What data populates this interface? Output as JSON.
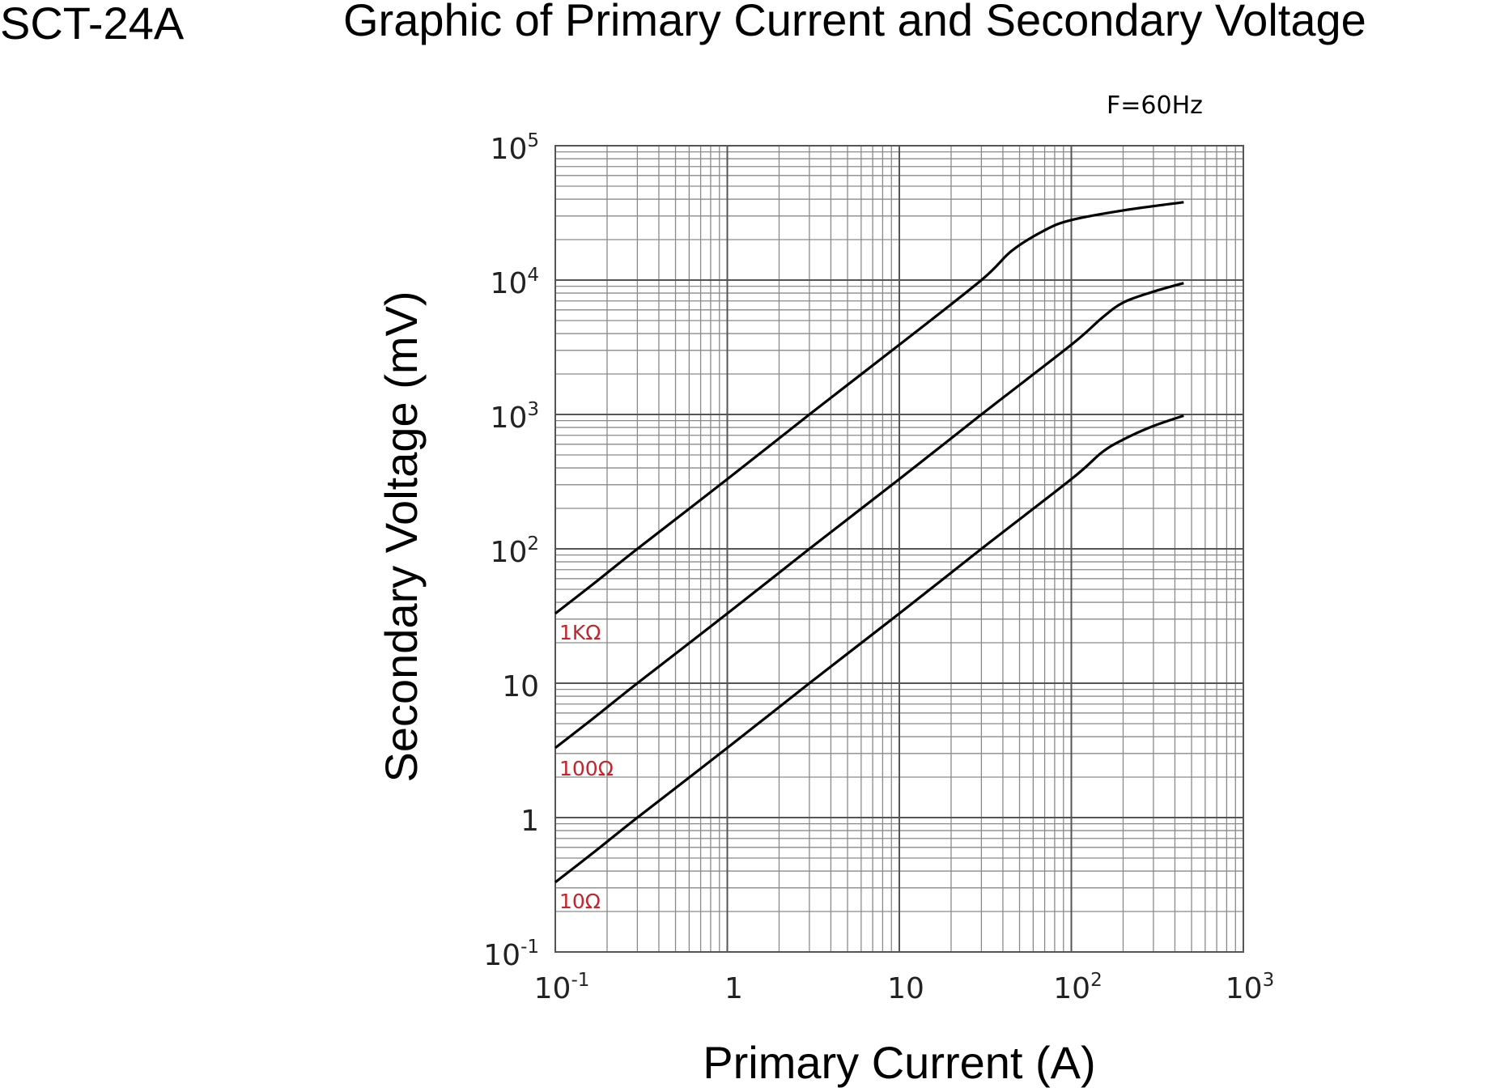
{
  "model": "SCT-24A",
  "chart_data": {
    "type": "line",
    "title": "Graphic of Primary Current and Secondary Voltage",
    "annotation": "F=60Hz",
    "xlabel": "Primary Current (A)",
    "ylabel": "Secondary Voltage (mV)",
    "x_scale": "log",
    "y_scale": "log",
    "xlim": [
      0.1,
      1000
    ],
    "ylim": [
      0.1,
      100000
    ],
    "grid": true,
    "x_ticks": [
      {
        "value": 0.1,
        "base": "10",
        "exp": "-1"
      },
      {
        "value": 1,
        "base": "1",
        "exp": ""
      },
      {
        "value": 10,
        "base": "10",
        "exp": ""
      },
      {
        "value": 100,
        "base": "10",
        "exp": "2"
      },
      {
        "value": 1000,
        "base": "10",
        "exp": "3"
      }
    ],
    "y_ticks": [
      {
        "value": 0.1,
        "base": "10",
        "exp": "-1"
      },
      {
        "value": 1,
        "base": "1",
        "exp": ""
      },
      {
        "value": 10,
        "base": "10",
        "exp": ""
      },
      {
        "value": 100,
        "base": "10",
        "exp": "2"
      },
      {
        "value": 1000,
        "base": "10",
        "exp": "3"
      },
      {
        "value": 10000,
        "base": "10",
        "exp": "4"
      },
      {
        "value": 100000,
        "base": "10",
        "exp": "5"
      }
    ],
    "series": [
      {
        "name": "1KΩ",
        "color": "#000000",
        "label_color": "#c0262c",
        "x": [
          0.1,
          0.17,
          0.3,
          1,
          3,
          10,
          30,
          45,
          70,
          100,
          200,
          450
        ],
        "y": [
          33,
          56,
          100,
          330,
          1000,
          3300,
          10000,
          16500,
          23500,
          28000,
          33000,
          38000
        ]
      },
      {
        "name": "100Ω",
        "color": "#000000",
        "label_color": "#c0262c",
        "x": [
          0.1,
          0.17,
          0.3,
          1,
          3,
          10,
          30,
          100,
          150,
          200,
          300,
          450
        ],
        "y": [
          3.3,
          5.6,
          10,
          33,
          100,
          330,
          1000,
          3300,
          5200,
          6800,
          8200,
          9500
        ]
      },
      {
        "name": "10Ω",
        "color": "#000000",
        "label_color": "#c0262c",
        "x": [
          0.1,
          0.17,
          0.3,
          1,
          3,
          10,
          30,
          100,
          150,
          200,
          300,
          450
        ],
        "y": [
          0.33,
          0.56,
          1,
          3.3,
          10,
          33,
          100,
          330,
          520,
          650,
          820,
          980
        ]
      }
    ]
  }
}
